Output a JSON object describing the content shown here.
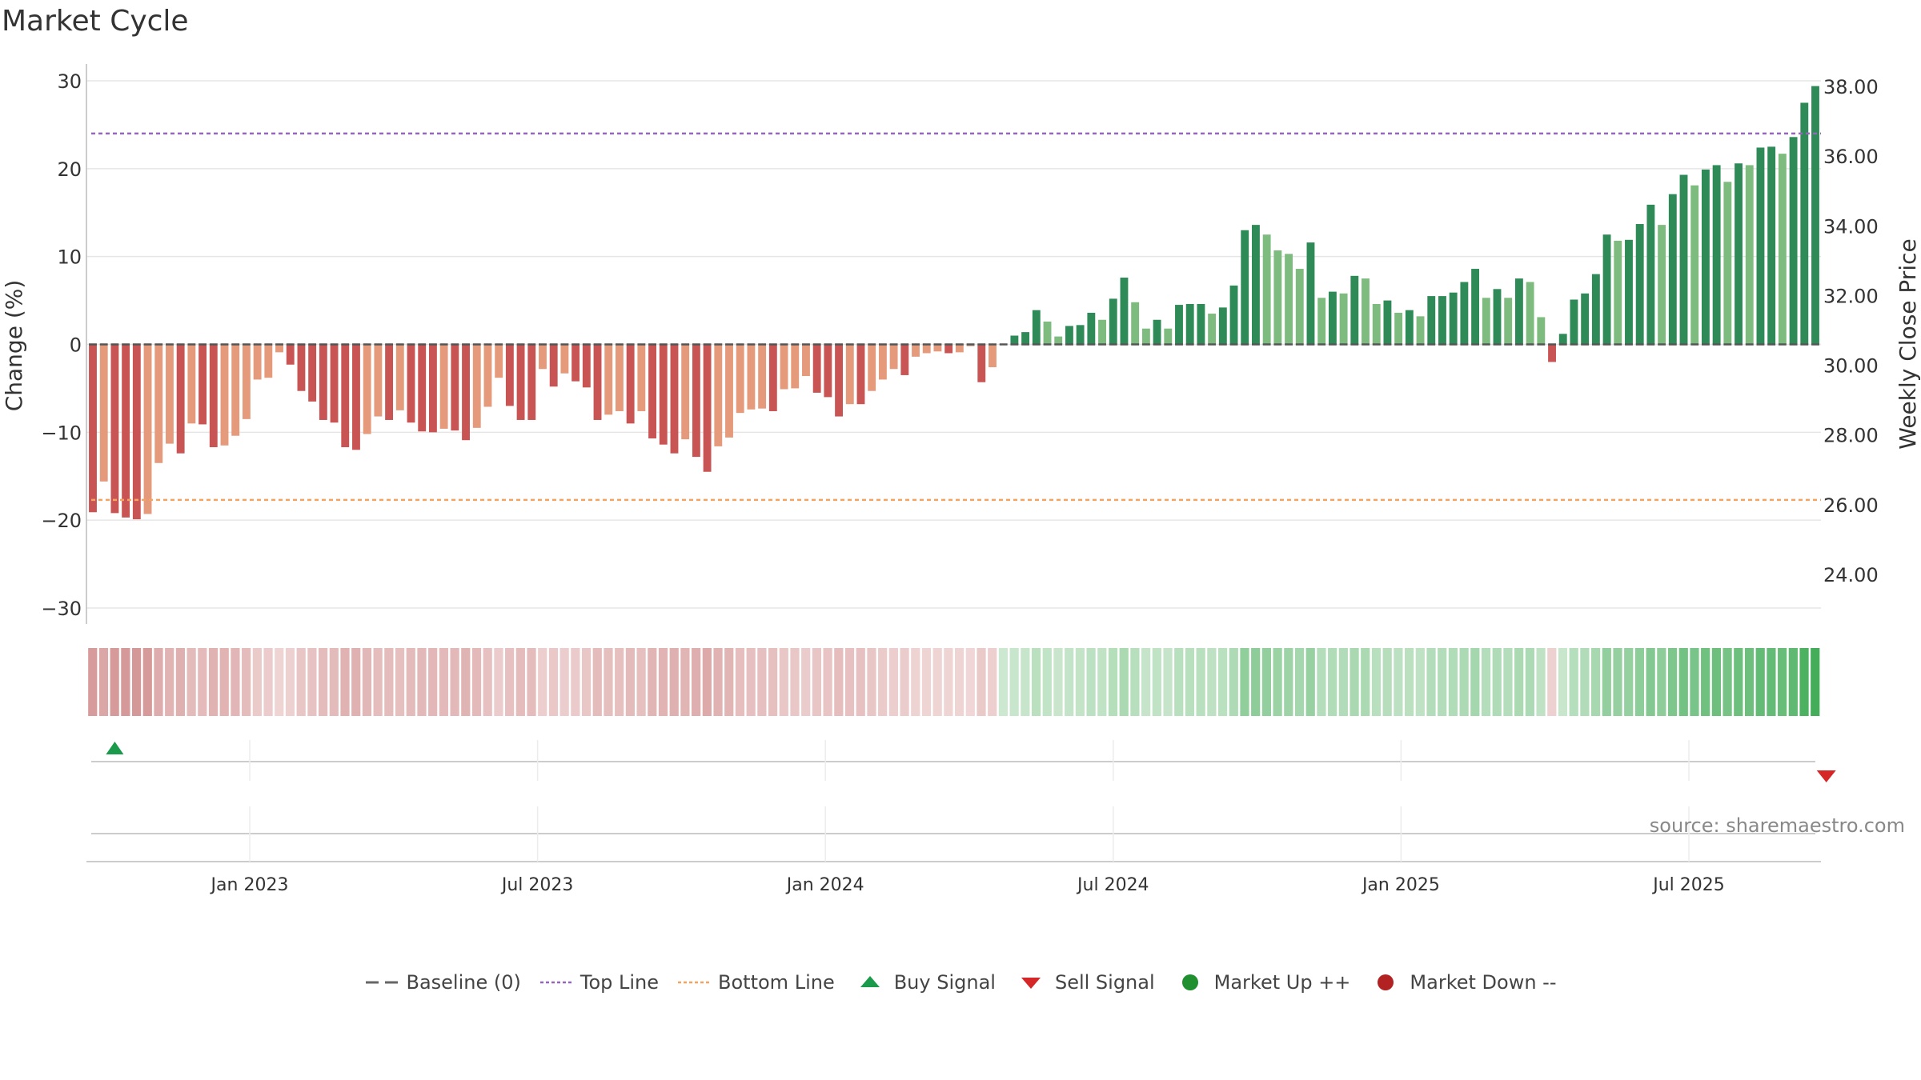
{
  "chart_data": {
    "type": "bar",
    "title": "Market Cycle",
    "ylabel": "Change (%)",
    "y2label": "Weekly Close Price",
    "ylim": [
      -30,
      30
    ],
    "y2lim": [
      24,
      38
    ],
    "yticks": [
      "30",
      "20",
      "10",
      "0",
      "−10",
      "−20",
      "−30"
    ],
    "y2ticks": [
      "38.00",
      "36.00",
      "34.00",
      "32.00",
      "30.00",
      "28.00",
      "26.00",
      "24.00"
    ],
    "xticks": [
      "Jan 2023",
      "Jul 2023",
      "Jan 2024",
      "Jul 2024",
      "Jan 2025",
      "Jul 2025"
    ],
    "top_line": 24,
    "bottom_line": -17.7,
    "baseline": 0,
    "source": "source: sharemaestro.com",
    "grid": true,
    "series": [
      {
        "values": [
          -19.1,
          -15.6,
          -19.2,
          -19.7,
          -19.9,
          -19.3,
          -13.5,
          -11.3,
          -12.4,
          -9.0,
          -9.1,
          -11.7,
          -11.5,
          -10.4,
          -8.5,
          -4.0,
          -3.8,
          -0.9,
          -2.3,
          -5.3,
          -6.5,
          -8.6,
          -8.9,
          -11.7,
          -12.0,
          -10.2,
          -8.2,
          -8.6,
          -7.5,
          -8.9,
          -9.9,
          -10.0,
          -9.6,
          -9.8,
          -10.9,
          -9.5,
          -7.1,
          -3.8,
          -7.0,
          -8.6,
          -8.6,
          -2.8,
          -4.8,
          -3.3,
          -4.2,
          -4.9,
          -8.6,
          -8.0,
          -7.6,
          -9.0,
          -7.6,
          -10.7,
          -11.4,
          -12.4,
          -10.8,
          -12.8,
          -14.5,
          -11.6,
          -10.6,
          -7.8,
          -7.4,
          -7.3,
          -7.6,
          -5.1,
          -5.0,
          -3.6,
          -5.5,
          -6.0,
          -8.2,
          -6.8,
          -6.8,
          -5.3,
          -4.0,
          -2.8,
          -3.5,
          -1.4,
          -1.0,
          -0.8,
          -1.0,
          -0.9,
          -0.2,
          -4.3,
          -2.6,
          0.0,
          1.0,
          1.4,
          3.9,
          2.6,
          0.9,
          2.1,
          2.2,
          3.6,
          2.8,
          5.2,
          7.6,
          4.8,
          1.8,
          2.8,
          1.8,
          4.5,
          4.6,
          4.6,
          3.5,
          4.2,
          6.7,
          13.0,
          13.6,
          12.5,
          10.7,
          10.3,
          8.6,
          11.6,
          5.3,
          6.0,
          5.8,
          7.8,
          7.5,
          4.6,
          5.0,
          3.6,
          3.9,
          3.2,
          5.5,
          5.5,
          5.9,
          7.1,
          8.6,
          5.3,
          6.3,
          5.3,
          7.5,
          7.1,
          3.1,
          -2.0,
          1.2,
          5.1,
          5.8,
          8.0,
          12.5,
          11.8,
          11.9,
          13.7,
          15.9,
          13.6,
          17.1,
          19.3,
          18.1,
          19.9,
          20.4,
          18.5,
          20.6,
          20.4,
          22.4,
          22.5,
          21.7,
          23.6,
          27.5,
          29.4
        ]
      }
    ],
    "colors": {
      "neg_dark": "#c95454",
      "neg_light": "#e59a7c",
      "pos_dark": "#2e8b57",
      "pos_light": "#7dbb7e",
      "top_line": "#9467bd",
      "bottom_line": "#f4a460",
      "baseline": "#555555",
      "buy": "#1a9a4a",
      "sell": "#d62728",
      "up": "#1f8f2f",
      "down": "#b22222"
    },
    "signals": [
      {
        "type": "buy",
        "week": 2
      },
      {
        "type": "sell",
        "week": 158
      }
    ],
    "legend": [
      {
        "key": "baseline",
        "label": "Baseline (0)"
      },
      {
        "key": "top",
        "label": "Top Line"
      },
      {
        "key": "bottom",
        "label": "Bottom Line"
      },
      {
        "key": "buy",
        "label": "Buy Signal"
      },
      {
        "key": "sell",
        "label": "Sell Signal"
      },
      {
        "key": "up",
        "label": "Market Up ++"
      },
      {
        "key": "down",
        "label": "Market Down --"
      }
    ]
  }
}
